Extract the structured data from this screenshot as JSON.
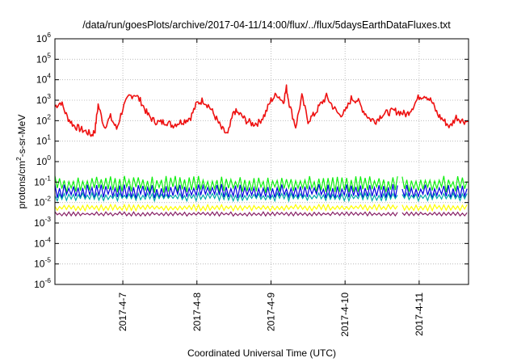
{
  "chart_data": {
    "type": "line",
    "title": "/data/run/goesPlots/archive/2017-04-11/14:00/flux/../flux/5daysEarthDataFluxes.txt",
    "xlabel": "Coordinated Universal Time (UTC)",
    "ylabel": "protons/cm²-s-sr-MeV",
    "ylabel_parts": {
      "main": "protons/cm",
      "sup": "2",
      "rest": "-s-sr-MeV"
    },
    "y_scale": "log",
    "ylim": [
      1e-06,
      1000000.0
    ],
    "y_ticks": [
      {
        "base": "10",
        "exp": "-6"
      },
      {
        "base": "10",
        "exp": "-5"
      },
      {
        "base": "10",
        "exp": "-4"
      },
      {
        "base": "10",
        "exp": "-3"
      },
      {
        "base": "10",
        "exp": "-2"
      },
      {
        "base": "10",
        "exp": "-1"
      },
      {
        "base": "10",
        "exp": "0"
      },
      {
        "base": "10",
        "exp": "1"
      },
      {
        "base": "10",
        "exp": "2"
      },
      {
        "base": "10",
        "exp": "3"
      },
      {
        "base": "10",
        "exp": "4"
      },
      {
        "base": "10",
        "exp": "5"
      },
      {
        "base": "10",
        "exp": "6"
      }
    ],
    "xlim": [
      "2017-04-06 02:00",
      "2017-04-11 16:00"
    ],
    "x_ticks": [
      "2017-4-7",
      "2017-4-8",
      "2017-4-9",
      "2017-4-10",
      "2017-4-11"
    ],
    "x_tick_dates": [
      "2017-04-07 00:00",
      "2017-04-08 00:00",
      "2017-04-09 00:00",
      "2017-04-10 00:00",
      "2017-04-11 00:00"
    ],
    "grid": true,
    "data_gap": [
      "2017-04-10 17:30",
      "2017-04-10 18:30"
    ],
    "series": [
      {
        "color": "#ee1111",
        "style": "line",
        "x": [
          "2017-04-06 02:00",
          "2017-04-06 04:00",
          "2017-04-06 06:00",
          "2017-04-06 08:00",
          "2017-04-06 10:00",
          "2017-04-06 12:00",
          "2017-04-06 14:00",
          "2017-04-06 15:00",
          "2017-04-06 16:00",
          "2017-04-06 18:00",
          "2017-04-06 20:00",
          "2017-04-06 22:00",
          "2017-04-07 00:00",
          "2017-04-07 02:00",
          "2017-04-07 04:00",
          "2017-04-07 06:00",
          "2017-04-07 08:00",
          "2017-04-07 10:00",
          "2017-04-07 12:00",
          "2017-04-07 14:00",
          "2017-04-07 16:00",
          "2017-04-07 18:00",
          "2017-04-07 20:00",
          "2017-04-07 22:00",
          "2017-04-08 00:00",
          "2017-04-08 02:00",
          "2017-04-08 04:00",
          "2017-04-08 06:00",
          "2017-04-08 08:00",
          "2017-04-08 10:00",
          "2017-04-08 12:00",
          "2017-04-08 14:00",
          "2017-04-08 16:00",
          "2017-04-08 18:00",
          "2017-04-08 20:00",
          "2017-04-08 22:00",
          "2017-04-09 00:00",
          "2017-04-09 02:00",
          "2017-04-09 04:00",
          "2017-04-09 05:00",
          "2017-04-09 06:00",
          "2017-04-09 08:00",
          "2017-04-09 10:00",
          "2017-04-09 12:00",
          "2017-04-09 14:00",
          "2017-04-09 16:00",
          "2017-04-09 18:00",
          "2017-04-09 20:00",
          "2017-04-09 22:00",
          "2017-04-10 00:00",
          "2017-04-10 02:00",
          "2017-04-10 04:00",
          "2017-04-10 06:00",
          "2017-04-10 08:00",
          "2017-04-10 10:00",
          "2017-04-10 12:00",
          "2017-04-10 14:00",
          "2017-04-10 16:00",
          "2017-04-10 18:00",
          "2017-04-10 20:00",
          "2017-04-10 22:00",
          "2017-04-11 00:00",
          "2017-04-11 02:00",
          "2017-04-11 04:00",
          "2017-04-11 06:00",
          "2017-04-11 08:00",
          "2017-04-11 10:00",
          "2017-04-11 12:00",
          "2017-04-11 14:00",
          "2017-04-11 16:00"
        ],
        "y": [
          500,
          800,
          150,
          60,
          40,
          30,
          20,
          35,
          600,
          50,
          150,
          40,
          400,
          1500,
          2000,
          800,
          200,
          100,
          80,
          90,
          60,
          80,
          100,
          150,
          700,
          1000,
          500,
          150,
          40,
          20,
          300,
          200,
          100,
          70,
          80,
          200,
          1000,
          2000,
          800,
          4000,
          600,
          50,
          1500,
          100,
          200,
          600,
          1500,
          500,
          200,
          250,
          1200,
          1000,
          300,
          120,
          100,
          200,
          250,
          300,
          250,
          200,
          500,
          1500,
          1800,
          900,
          200,
          100,
          50,
          150,
          100,
          90
        ]
      },
      {
        "color": "#11ee11",
        "style": "band",
        "ylim": [
          0.03,
          0.2
        ]
      },
      {
        "color": "#0000dd",
        "style": "band",
        "ylim": [
          0.015,
          0.08
        ]
      },
      {
        "color": "#00a9a9",
        "style": "band",
        "ylim": [
          0.012,
          0.03
        ]
      },
      {
        "color": "#ffff00",
        "style": "band",
        "ylim": [
          0.004,
          0.008
        ]
      },
      {
        "color": "#882266",
        "style": "band",
        "ylim": [
          0.0022,
          0.0035
        ]
      }
    ]
  }
}
